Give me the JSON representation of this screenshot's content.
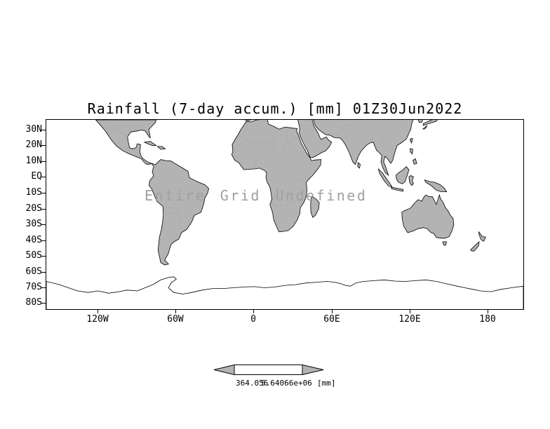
{
  "title": "Rainfall (7-day accum.) [mm] 01Z30Jun2022",
  "overlay": {
    "undefined_text": "Entire Grid Undefined"
  },
  "axes": {
    "lat": [
      "30N",
      "20N",
      "10N",
      "EQ",
      "10S",
      "20S",
      "30S",
      "40S",
      "50S",
      "60S",
      "70S",
      "80S"
    ],
    "lon": [
      "120W",
      "60W",
      "0",
      "60E",
      "120E",
      "180"
    ]
  },
  "colorbar": {
    "min_label": "364.056",
    "max_label": "5.64066e+06",
    "unit": "[mm]"
  },
  "colors": {
    "land": "#b3b3b3",
    "coast": "#000000",
    "border": "#9a9a9a",
    "undefined_text": "#a0a0a0",
    "background": "#ffffff"
  },
  "chart_data": {
    "type": "heatmap",
    "title": "Rainfall (7-day accum.) [mm] 01Z30Jun2022",
    "variable": "Rainfall (7-day accum.)",
    "units": "mm",
    "valid_time": "01Z30Jun2022",
    "x_ticks": [
      "120W",
      "60W",
      "0",
      "60E",
      "120E",
      "180"
    ],
    "y_ticks": [
      "30N",
      "20N",
      "10N",
      "EQ",
      "10S",
      "20S",
      "30S",
      "40S",
      "50S",
      "60S",
      "70S",
      "80S"
    ],
    "series": [],
    "data_status": "Entire Grid Undefined",
    "colorbar": {
      "labels": [
        "364.056",
        "5.64066e+06"
      ],
      "unit": "[mm]"
    },
    "legend_position": "bottom",
    "grid": false
  }
}
